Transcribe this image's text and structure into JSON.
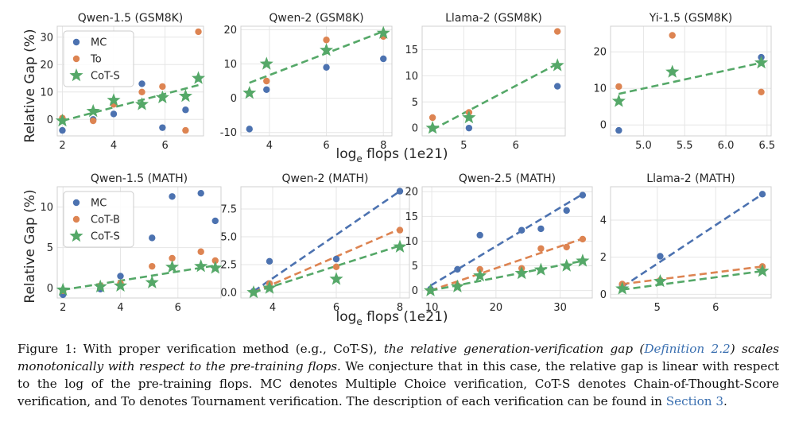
{
  "colors": {
    "MC": "#4c72b0",
    "To": "#dd8452",
    "CoT-B": "#dd8452",
    "CoT-S": "#55a868"
  },
  "shared_labels": {
    "ylabel": "Relative Gap (%)",
    "xlabel_base": "log",
    "xlabel_sub": "e",
    "xlabel_rest": " flops (1e21)"
  },
  "chart_data": [
    {
      "type": "scatter",
      "title": "Qwen-1.5 (GSM8K)",
      "xlim": [
        1.8,
        7.5
      ],
      "ylim": [
        -6,
        34
      ],
      "xticks": [
        2,
        4,
        6
      ],
      "yticks": [
        0,
        10,
        20,
        30
      ],
      "legend": [
        "MC",
        "To",
        "CoT-S"
      ],
      "legend_position": "top-left",
      "series": [
        {
          "name": "MC",
          "marker": "circle",
          "points": [
            [
              2.0,
              -4
            ],
            [
              3.2,
              0
            ],
            [
              4.0,
              2
            ],
            [
              5.1,
              13
            ],
            [
              5.9,
              -3
            ],
            [
              6.8,
              3.5
            ],
            [
              7.3,
              15
            ]
          ]
        },
        {
          "name": "To",
          "marker": "circle",
          "points": [
            [
              2.0,
              0.5
            ],
            [
              3.2,
              -0.5
            ],
            [
              4.0,
              5.5
            ],
            [
              5.1,
              10
            ],
            [
              5.9,
              12
            ],
            [
              6.8,
              -4
            ],
            [
              7.3,
              32
            ]
          ]
        },
        {
          "name": "CoT-S",
          "marker": "star",
          "points": [
            [
              2.0,
              -0.5
            ],
            [
              3.2,
              3
            ],
            [
              4.0,
              7
            ],
            [
              5.1,
              5.5
            ],
            [
              5.9,
              8
            ],
            [
              6.8,
              8.5
            ],
            [
              7.3,
              15
            ]
          ],
          "fit": [
            [
              2.0,
              -0.5
            ],
            [
              7.3,
              12.5
            ]
          ]
        }
      ]
    },
    {
      "type": "scatter",
      "title": "Qwen-2 (GSM8K)",
      "xlim": [
        3.0,
        8.3
      ],
      "ylim": [
        -11,
        21
      ],
      "xticks": [
        4,
        6,
        8
      ],
      "yticks": [
        -10,
        0,
        10,
        20
      ],
      "series": [
        {
          "name": "MC",
          "marker": "circle",
          "points": [
            [
              3.3,
              -9
            ],
            [
              3.9,
              2.5
            ],
            [
              6.0,
              9
            ],
            [
              8.0,
              11.5
            ]
          ]
        },
        {
          "name": "To",
          "marker": "circle",
          "points": [
            [
              3.3,
              1.5
            ],
            [
              3.9,
              5
            ],
            [
              6.0,
              17
            ],
            [
              8.0,
              18
            ]
          ]
        },
        {
          "name": "CoT-S",
          "marker": "star",
          "points": [
            [
              3.3,
              1.5
            ],
            [
              3.9,
              10
            ],
            [
              6.0,
              14
            ],
            [
              8.0,
              19
            ]
          ],
          "fit": [
            [
              3.3,
              4.5
            ],
            [
              8.0,
              19.5
            ]
          ]
        }
      ]
    },
    {
      "type": "scatter",
      "title": "Llama-2 (GSM8K)",
      "xlim": [
        4.2,
        6.95
      ],
      "ylim": [
        -1.5,
        19.5
      ],
      "xticks": [
        5,
        6
      ],
      "yticks": [
        0,
        5,
        10,
        15
      ],
      "series": [
        {
          "name": "MC",
          "marker": "circle",
          "points": [
            [
              4.4,
              0
            ],
            [
              5.1,
              0
            ],
            [
              6.8,
              8
            ]
          ]
        },
        {
          "name": "To",
          "marker": "circle",
          "points": [
            [
              4.4,
              2
            ],
            [
              5.1,
              3
            ],
            [
              6.8,
              18.5
            ]
          ]
        },
        {
          "name": "CoT-S",
          "marker": "star",
          "points": [
            [
              4.4,
              0
            ],
            [
              5.1,
              2
            ],
            [
              6.8,
              12
            ]
          ],
          "fit": [
            [
              4.4,
              -0.3
            ],
            [
              6.8,
              12.3
            ]
          ]
        }
      ]
    },
    {
      "type": "scatter",
      "title": "Yi-1.5 (GSM8K)",
      "xlim": [
        4.6,
        6.55
      ],
      "ylim": [
        -3,
        27
      ],
      "xticks": [
        5.0,
        5.5,
        6.0,
        6.5
      ],
      "yticks": [
        0,
        10,
        20
      ],
      "series": [
        {
          "name": "MC",
          "marker": "circle",
          "points": [
            [
              4.7,
              -1.5
            ],
            [
              5.35,
              14.5
            ],
            [
              6.43,
              18.5
            ]
          ]
        },
        {
          "name": "To",
          "marker": "circle",
          "points": [
            [
              4.7,
              10.5
            ],
            [
              5.35,
              24.5
            ],
            [
              6.43,
              9
            ]
          ]
        },
        {
          "name": "CoT-S",
          "marker": "star",
          "points": [
            [
              4.7,
              6.5
            ],
            [
              5.35,
              14.5
            ],
            [
              6.43,
              17
            ]
          ],
          "fit": [
            [
              4.7,
              8.5
            ],
            [
              6.43,
              17
            ]
          ]
        }
      ]
    },
    {
      "type": "scatter",
      "title": "Qwen-1.5 (MATH)",
      "xlim": [
        1.8,
        7.5
      ],
      "ylim": [
        -1.2,
        12.5
      ],
      "xticks": [
        2,
        4,
        6
      ],
      "yticks": [
        0,
        5,
        10
      ],
      "legend": [
        "MC",
        "CoT-B",
        "CoT-S"
      ],
      "legend_position": "top-left",
      "series": [
        {
          "name": "MC",
          "marker": "circle",
          "points": [
            [
              2.0,
              -0.8
            ],
            [
              3.3,
              -0.1
            ],
            [
              4.0,
              1.5
            ],
            [
              5.1,
              6.2
            ],
            [
              5.8,
              11.3
            ],
            [
              6.8,
              11.7
            ],
            [
              7.3,
              8.3
            ]
          ]
        },
        {
          "name": "CoT-B",
          "marker": "circle",
          "points": [
            [
              2.0,
              -0.3
            ],
            [
              3.3,
              0.3
            ],
            [
              4.0,
              0.6
            ],
            [
              5.1,
              2.7
            ],
            [
              5.8,
              3.7
            ],
            [
              6.8,
              4.5
            ],
            [
              7.3,
              3.4
            ]
          ]
        },
        {
          "name": "CoT-S",
          "marker": "star",
          "points": [
            [
              2.0,
              -0.2
            ],
            [
              3.3,
              0.2
            ],
            [
              4.0,
              0.3
            ],
            [
              5.1,
              0.7
            ],
            [
              5.8,
              2.6
            ],
            [
              6.8,
              2.7
            ],
            [
              7.3,
              2.5
            ]
          ],
          "fit": [
            [
              2.0,
              -0.2
            ],
            [
              7.3,
              2.8
            ]
          ]
        }
      ]
    },
    {
      "type": "scatter",
      "title": "Qwen-2 (MATH)",
      "xlim": [
        3.0,
        8.3
      ],
      "ylim": [
        -0.5,
        9.5
      ],
      "xticks": [
        4,
        6,
        8
      ],
      "yticks": [
        0.0,
        2.5,
        5.0,
        7.5
      ],
      "ytick_labels": [
        "0.0",
        "2.5",
        "5.0",
        "7.5"
      ],
      "series": [
        {
          "name": "MC",
          "marker": "circle",
          "points": [
            [
              3.4,
              0.1
            ],
            [
              3.9,
              2.8
            ],
            [
              6.0,
              3.0
            ],
            [
              8.0,
              9.1
            ]
          ],
          "fit": [
            [
              3.4,
              0.1
            ],
            [
              8.0,
              9.1
            ]
          ]
        },
        {
          "name": "CoT-B",
          "marker": "circle",
          "points": [
            [
              3.4,
              0.0
            ],
            [
              3.9,
              0.8
            ],
            [
              6.0,
              2.3
            ],
            [
              8.0,
              5.6
            ]
          ],
          "fit": [
            [
              3.4,
              0.0
            ],
            [
              8.0,
              5.7
            ]
          ]
        },
        {
          "name": "CoT-S",
          "marker": "star",
          "points": [
            [
              3.4,
              0.0
            ],
            [
              3.9,
              0.4
            ],
            [
              6.0,
              1.2
            ],
            [
              8.0,
              4.1
            ]
          ],
          "fit": [
            [
              3.4,
              0.0
            ],
            [
              8.0,
              4.2
            ]
          ]
        }
      ]
    },
    {
      "type": "scatter",
      "title": "Qwen-2.5 (MATH)",
      "xlim": [
        8.5,
        35
      ],
      "ylim": [
        -1.5,
        21
      ],
      "xticks": [
        10,
        20,
        30
      ],
      "yticks": [
        0,
        5,
        10,
        15,
        20
      ],
      "series": [
        {
          "name": "MC",
          "marker": "circle",
          "points": [
            [
              9.8,
              0.3
            ],
            [
              14,
              4.3
            ],
            [
              17.5,
              11.2
            ],
            [
              24,
              12.2
            ],
            [
              27,
              12.5
            ],
            [
              31,
              16.2
            ],
            [
              33.5,
              19.3
            ]
          ],
          "fit": [
            [
              9.8,
              1.0
            ],
            [
              33.5,
              19.5
            ]
          ]
        },
        {
          "name": "CoT-B",
          "marker": "circle",
          "points": [
            [
              9.8,
              0.0
            ],
            [
              14,
              1.0
            ],
            [
              17.5,
              4.3
            ],
            [
              24,
              4.5
            ],
            [
              27,
              8.5
            ],
            [
              31,
              8.8
            ],
            [
              33.5,
              10.4
            ]
          ],
          "fit": [
            [
              9.8,
              0.0
            ],
            [
              33.5,
              10.5
            ]
          ]
        },
        {
          "name": "CoT-S",
          "marker": "star",
          "points": [
            [
              9.8,
              0.0
            ],
            [
              14,
              0.8
            ],
            [
              17.5,
              3.0
            ],
            [
              24,
              3.5
            ],
            [
              27,
              4.2
            ],
            [
              31,
              5.0
            ],
            [
              33.5,
              6.0
            ]
          ],
          "fit": [
            [
              9.8,
              0.0
            ],
            [
              33.5,
              6.0
            ]
          ]
        }
      ]
    },
    {
      "type": "scatter",
      "title": "Llama-2 (MATH)",
      "xlim": [
        4.2,
        6.95
      ],
      "ylim": [
        -0.2,
        5.8
      ],
      "xticks": [
        5,
        6
      ],
      "yticks": [
        0,
        2,
        4
      ],
      "series": [
        {
          "name": "MC",
          "marker": "circle",
          "points": [
            [
              4.4,
              0.5
            ],
            [
              5.05,
              2.05
            ],
            [
              6.8,
              5.4
            ]
          ],
          "fit": [
            [
              4.4,
              0.4
            ],
            [
              6.8,
              5.4
            ]
          ]
        },
        {
          "name": "CoT-B",
          "marker": "circle",
          "points": [
            [
              4.4,
              0.55
            ],
            [
              5.05,
              0.75
            ],
            [
              6.8,
              1.5
            ]
          ],
          "fit": [
            [
              4.4,
              0.55
            ],
            [
              6.8,
              1.5
            ]
          ]
        },
        {
          "name": "CoT-S",
          "marker": "star",
          "points": [
            [
              4.4,
              0.3
            ],
            [
              5.05,
              0.7
            ],
            [
              6.8,
              1.25
            ]
          ],
          "fit": [
            [
              4.4,
              0.25
            ],
            [
              6.8,
              1.25
            ]
          ]
        }
      ]
    }
  ],
  "caption": {
    "part1": "Figure 1: With proper verification method (e.g., CoT-S), ",
    "part2": "the relative generation-verification gap (",
    "ref1": "Definition 2.2",
    "part3": ") scales monotonically with respect to the pre-training flops.",
    "part4": " We conjecture that in this case, the relative gap is linear with respect to the log of the pre-training flops. MC denotes Multiple Choice verification, CoT-S denotes Chain-of-Thought-Score verification, and To denotes Tournament verification. The description of each verification can be found in ",
    "ref2": "Section 3",
    "part5": "."
  }
}
